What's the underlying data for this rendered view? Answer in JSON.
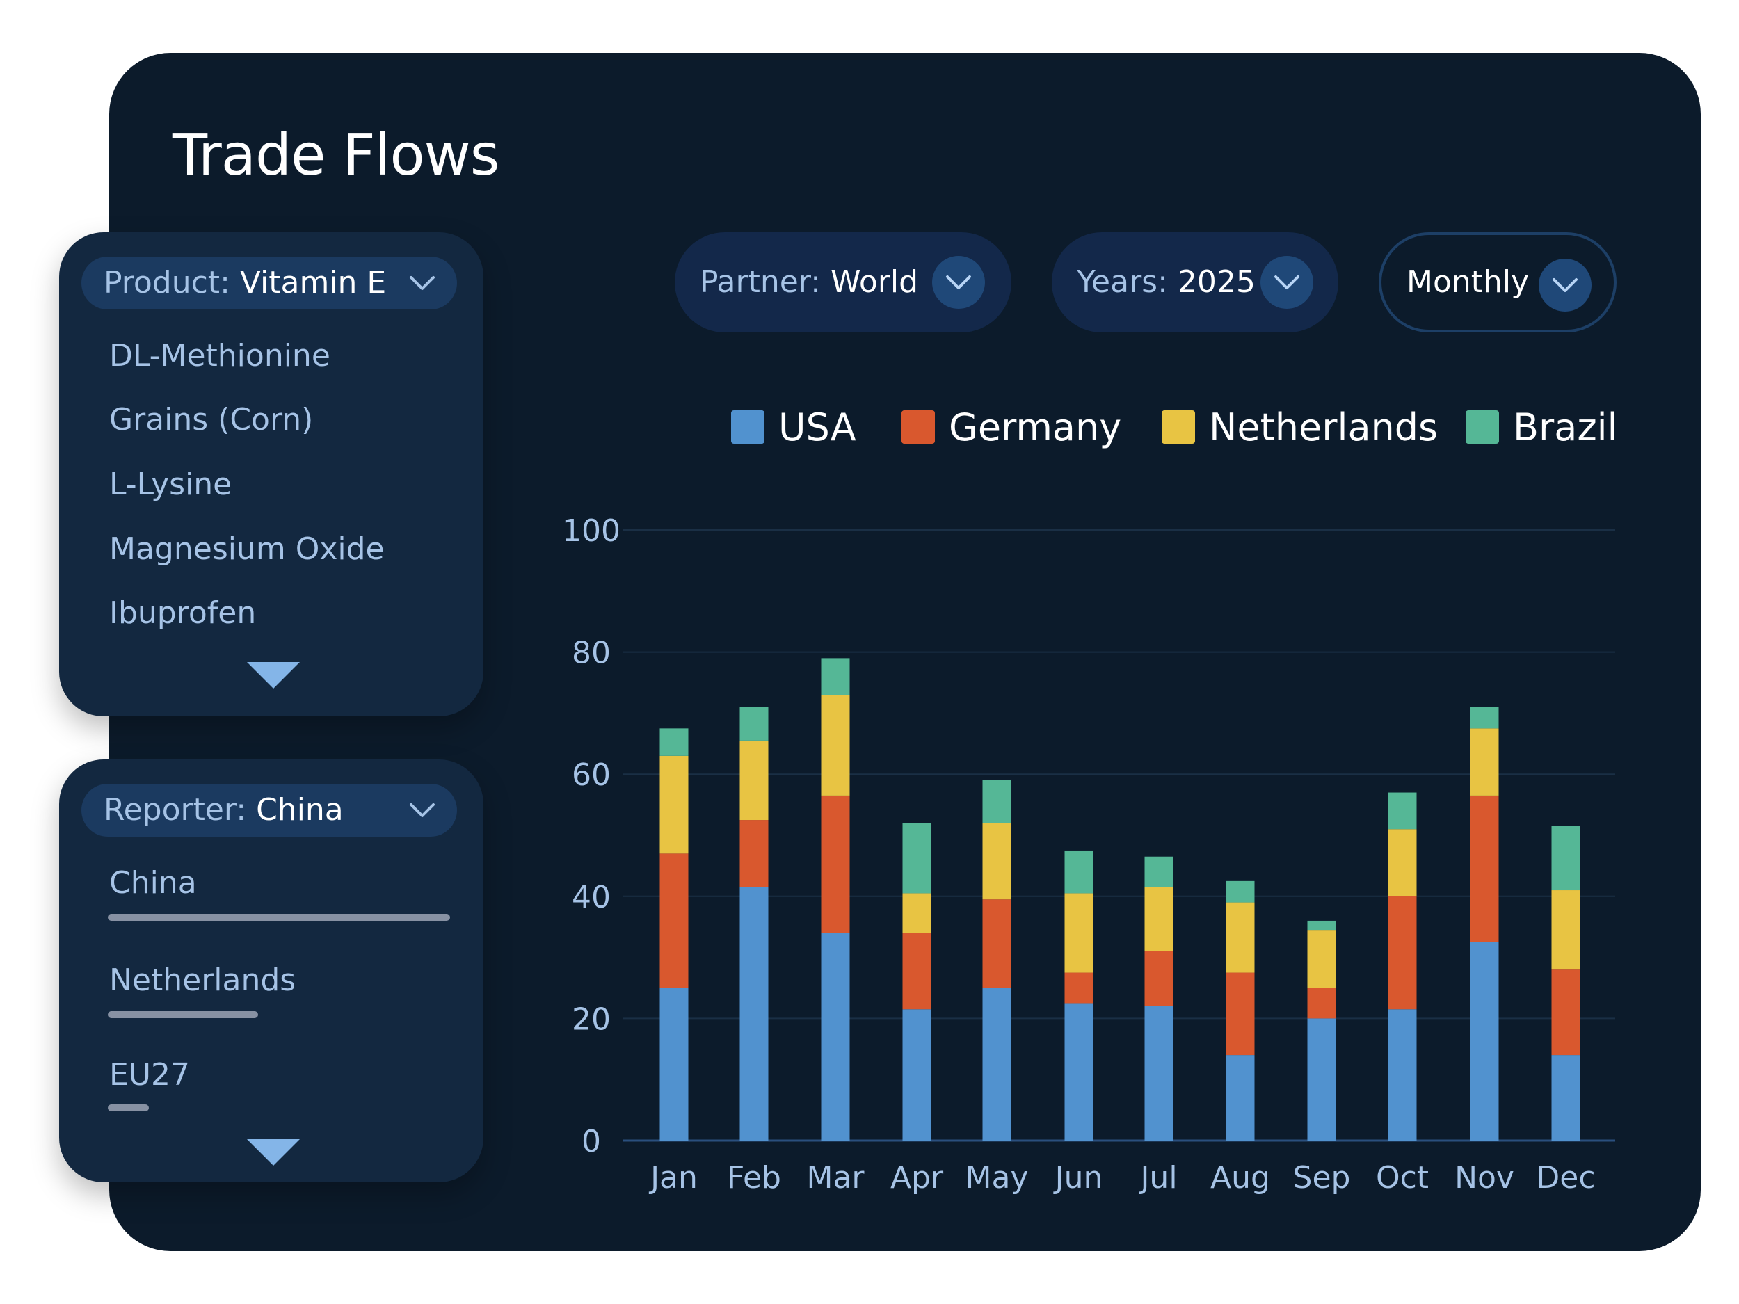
{
  "app": {
    "title": "Trade Flows"
  },
  "product": {
    "label": "Product:",
    "value": "Vitamin E",
    "options": [
      "DL-Methionine",
      "Grains (Corn)",
      "L-Lysine",
      "Magnesium Oxide",
      "Ibuprofen"
    ]
  },
  "reporter": {
    "label": "Reporter:",
    "value": "China",
    "items": [
      {
        "name": "China",
        "share": 1.0
      },
      {
        "name": "Netherlands",
        "share": 0.44
      },
      {
        "name": "EU27",
        "share": 0.12
      }
    ]
  },
  "filters": {
    "partner": {
      "label": "Partner:",
      "value": "World"
    },
    "years": {
      "label": "Years:",
      "value": "2025"
    },
    "frequency": {
      "value": "Monthly"
    }
  },
  "colors": {
    "USA": "#5192cf",
    "Germany": "#d9582e",
    "Netherlands": "#e8c443",
    "Brazil": "#55b796",
    "card": "#0c1b2b",
    "panel": "#132840"
  },
  "chart_data": {
    "type": "bar",
    "stacked": true,
    "categories": [
      "Jan",
      "Feb",
      "Mar",
      "Apr",
      "May",
      "Jun",
      "Jul",
      "Aug",
      "Sep",
      "Oct",
      "Nov",
      "Dec"
    ],
    "series": [
      {
        "name": "USA",
        "values": [
          25,
          41.5,
          34,
          21.5,
          25,
          22.5,
          22,
          14,
          20,
          21.5,
          32.5,
          14
        ]
      },
      {
        "name": "Germany",
        "values": [
          22,
          11,
          22.5,
          12.5,
          14.5,
          5,
          9,
          13.5,
          5,
          18.5,
          24,
          14
        ]
      },
      {
        "name": "Netherlands",
        "values": [
          16,
          13,
          16.5,
          6.5,
          12.5,
          13,
          10.5,
          11.5,
          9.5,
          11,
          11,
          13
        ]
      },
      {
        "name": "Brazil",
        "values": [
          4.5,
          5.5,
          6,
          11.5,
          7,
          7,
          5,
          3.5,
          1.5,
          6,
          3.5,
          10.5
        ]
      }
    ],
    "ylim": [
      0,
      100
    ],
    "yticks": [
      0,
      20,
      40,
      60,
      80,
      100
    ],
    "legend": "top-right",
    "grid": true
  }
}
